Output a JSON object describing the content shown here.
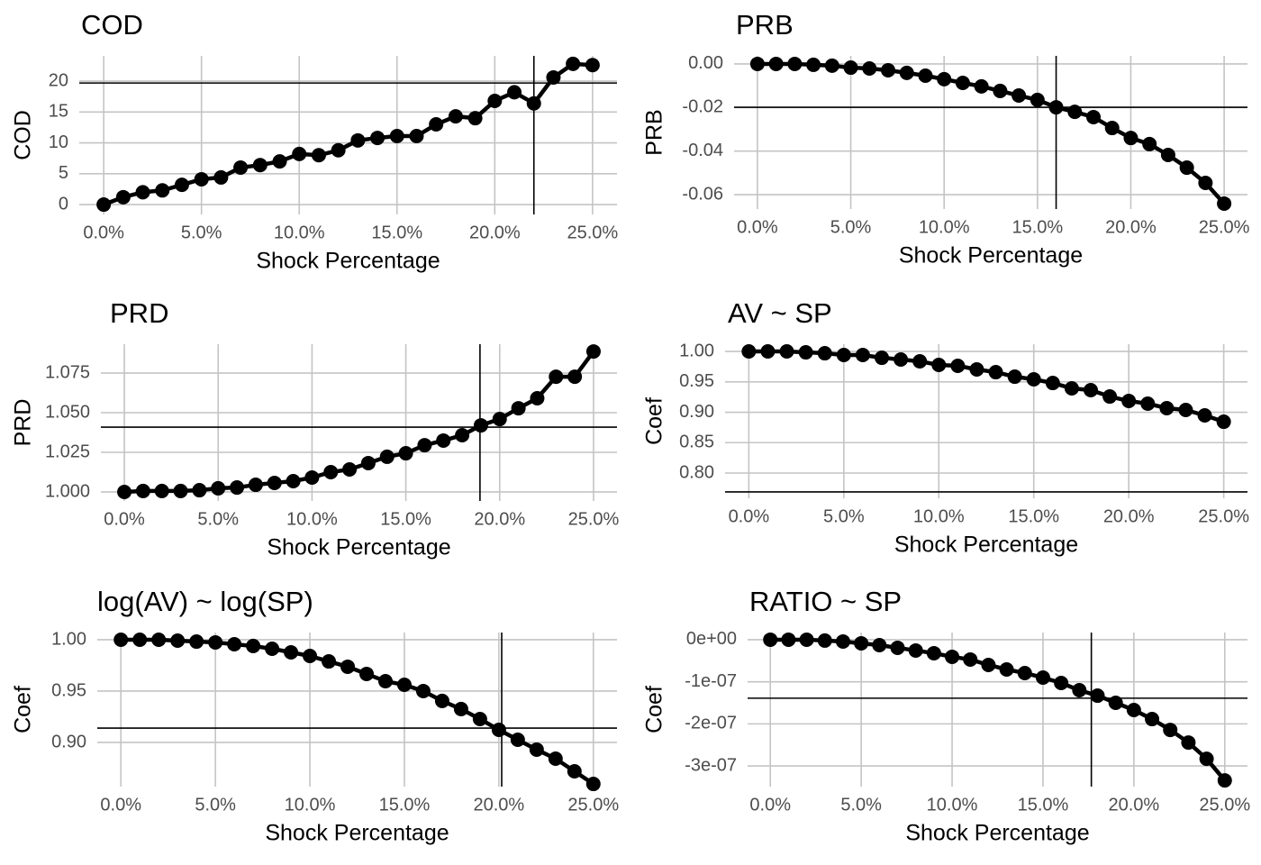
{
  "chart_data": [
    {
      "type": "line",
      "title": "COD",
      "x_label": "Shock Percentage",
      "y_label": "COD",
      "color": "#000000",
      "grid": true,
      "x": [
        0,
        0.01,
        0.02,
        0.03,
        0.04,
        0.05,
        0.06,
        0.07,
        0.08,
        0.09,
        0.1,
        0.11,
        0.12,
        0.13,
        0.14,
        0.15,
        0.16,
        0.17,
        0.18,
        0.19,
        0.2,
        0.21,
        0.22,
        0.23,
        0.24,
        0.25
      ],
      "values": [
        0,
        1.2,
        2,
        2.3,
        3.2,
        4.1,
        4.4,
        6,
        6.4,
        7,
        8.2,
        8,
        8.8,
        10.4,
        10.8,
        11.1,
        11.1,
        13,
        14.3,
        14,
        16.8,
        18.2,
        16.4,
        20.6,
        22.8,
        22.6
      ],
      "xlim": [
        -0.0125,
        0.2625
      ],
      "xticks": [
        {
          "value": 0,
          "label": "0.0%"
        },
        {
          "value": 0.05,
          "label": "5.0%"
        },
        {
          "value": 0.1,
          "label": "10.0%"
        },
        {
          "value": 0.15,
          "label": "15.0%"
        },
        {
          "value": 0.2,
          "label": "20.0%"
        },
        {
          "value": 0.25,
          "label": "25.0%"
        }
      ],
      "ylim": [
        -1.6,
        24.1
      ],
      "yticks": [
        0,
        5,
        10,
        15,
        20
      ],
      "hline": 19.7,
      "vline": 0.22
    },
    {
      "type": "line",
      "title": "PRB",
      "x_label": "Shock Percentage",
      "y_label": "PRB",
      "color": "#000000",
      "grid": true,
      "x": [
        0,
        0.01,
        0.02,
        0.03,
        0.04,
        0.05,
        0.06,
        0.07,
        0.08,
        0.09,
        0.1,
        0.11,
        0.12,
        0.13,
        0.14,
        0.15,
        0.16,
        0.17,
        0.18,
        0.19,
        0.2,
        0.21,
        0.22,
        0.23,
        0.24,
        0.25
      ],
      "values": [
        0,
        0,
        0,
        -0.0004,
        -0.0008,
        -0.0017,
        -0.0021,
        -0.0029,
        -0.0041,
        -0.0054,
        -0.007,
        -0.0087,
        -0.0103,
        -0.0124,
        -0.0145,
        -0.0165,
        -0.0199,
        -0.022,
        -0.0244,
        -0.0294,
        -0.034,
        -0.0368,
        -0.0418,
        -0.0476,
        -0.0546,
        -0.0641
      ],
      "xlim": [
        -0.0125,
        0.2625
      ],
      "xticks": [
        {
          "value": 0,
          "label": "0.0%"
        },
        {
          "value": 0.05,
          "label": "5.0%"
        },
        {
          "value": 0.1,
          "label": "10.0%"
        },
        {
          "value": 0.15,
          "label": "15.0%"
        },
        {
          "value": 0.2,
          "label": "20.0%"
        },
        {
          "value": 0.25,
          "label": "25.0%"
        }
      ],
      "ylim": [
        -0.0666,
        0.0037
      ],
      "yticks": [
        {
          "value": 0,
          "label": "0.00"
        },
        -0.02,
        -0.04,
        -0.06
      ],
      "hline": -0.0199,
      "vline": 0.16
    },
    {
      "type": "line",
      "title": "PRD",
      "x_label": "Shock Percentage",
      "y_label": "PRD",
      "color": "#000000",
      "grid": true,
      "x": [
        0,
        0.01,
        0.02,
        0.03,
        0.04,
        0.05,
        0.06,
        0.07,
        0.08,
        0.09,
        0.1,
        0.11,
        0.12,
        0.13,
        0.14,
        0.15,
        0.16,
        0.17,
        0.18,
        0.19,
        0.2,
        0.21,
        0.22,
        0.23,
        0.24,
        0.25
      ],
      "values": [
        1.0,
        1.0006,
        1.0006,
        1.0006,
        1.0011,
        1.0023,
        1.0028,
        1.0045,
        1.0057,
        1.0068,
        1.0091,
        1.0125,
        1.0142,
        1.0182,
        1.0222,
        1.0244,
        1.0295,
        1.0324,
        1.0358,
        1.042,
        1.046,
        1.0528,
        1.0591,
        1.0727,
        1.0727,
        1.0886
      ],
      "xlim": [
        -0.0125,
        0.2625
      ],
      "xticks": [
        {
          "value": 0,
          "label": "0.0%"
        },
        {
          "value": 0.05,
          "label": "5.0%"
        },
        {
          "value": 0.1,
          "label": "10.0%"
        },
        {
          "value": 0.15,
          "label": "15.0%"
        },
        {
          "value": 0.2,
          "label": "20.0%"
        },
        {
          "value": 0.25,
          "label": "25.0%"
        }
      ],
      "ylim": [
        0.9943,
        1.0932
      ],
      "yticks": [
        {
          "value": 1,
          "label": "1.000"
        },
        1.025,
        {
          "value": 1.05,
          "label": "1.050"
        },
        1.075
      ],
      "hline": 1.0409,
      "vline": 0.1895
    },
    {
      "type": "line",
      "title": "AV ~ SP",
      "x_label": "Shock Percentage",
      "y_label": "Coef",
      "color": "#000000",
      "grid": true,
      "x": [
        0,
        0.01,
        0.02,
        0.03,
        0.04,
        0.05,
        0.06,
        0.07,
        0.08,
        0.09,
        0.1,
        0.11,
        0.12,
        0.13,
        0.14,
        0.15,
        0.16,
        0.17,
        0.18,
        0.19,
        0.2,
        0.21,
        0.22,
        0.23,
        0.24,
        0.25
      ],
      "values": [
        1,
        1,
        1,
        0.9985,
        0.997,
        0.9941,
        0.9941,
        0.9896,
        0.9867,
        0.9837,
        0.9778,
        0.9763,
        0.9704,
        0.9659,
        0.9585,
        0.9541,
        0.9481,
        0.9393,
        0.9363,
        0.9259,
        0.9185,
        0.9141,
        0.9067,
        0.9037,
        0.8948,
        0.8844
      ],
      "xlim": [
        -0.0125,
        0.2625
      ],
      "xticks": [
        {
          "value": 0,
          "label": "0.0%"
        },
        {
          "value": 0.05,
          "label": "5.0%"
        },
        {
          "value": 0.1,
          "label": "10.0%"
        },
        {
          "value": 0.15,
          "label": "15.0%"
        },
        {
          "value": 0.2,
          "label": "20.0%"
        },
        {
          "value": 0.25,
          "label": "25.0%"
        }
      ],
      "ylim": [
        0.7585,
        1.0119
      ],
      "yticks": [
        {
          "value": 1,
          "label": "1.00"
        },
        0.95,
        {
          "value": 0.9,
          "label": "0.90"
        },
        0.85,
        {
          "value": 0.8,
          "label": "0.80"
        }
      ],
      "hline": 0.7689
    },
    {
      "type": "line",
      "title": "log(AV) ~ log(SP)",
      "x_label": "Shock Percentage",
      "y_label": "Coef",
      "color": "#000000",
      "grid": true,
      "x": [
        0,
        0.01,
        0.02,
        0.03,
        0.04,
        0.05,
        0.06,
        0.07,
        0.08,
        0.09,
        0.1,
        0.11,
        0.12,
        0.13,
        0.14,
        0.15,
        0.16,
        0.17,
        0.18,
        0.19,
        0.2,
        0.21,
        0.22,
        0.23,
        0.24,
        0.25
      ],
      "values": [
        1,
        1,
        1,
        0.9991,
        0.9982,
        0.9974,
        0.9956,
        0.9939,
        0.9912,
        0.9877,
        0.9842,
        0.9789,
        0.9737,
        0.9667,
        0.9596,
        0.9561,
        0.95,
        0.9404,
        0.9325,
        0.9228,
        0.9123,
        0.9026,
        0.893,
        0.8842,
        0.8719,
        0.8596
      ],
      "xlim": [
        -0.0125,
        0.2625
      ],
      "xticks": [
        {
          "value": 0,
          "label": "0.0%"
        },
        {
          "value": 0.05,
          "label": "5.0%"
        },
        {
          "value": 0.1,
          "label": "10.0%"
        },
        {
          "value": 0.15,
          "label": "15.0%"
        },
        {
          "value": 0.2,
          "label": "20.0%"
        },
        {
          "value": 0.25,
          "label": "25.0%"
        }
      ],
      "ylim": [
        0.857,
        1.007
      ],
      "yticks": [
        {
          "value": 1,
          "label": "1.00"
        },
        0.95,
        {
          "value": 0.9,
          "label": "0.90"
        }
      ],
      "hline": 0.914,
      "vline": 0.2015
    },
    {
      "type": "line",
      "title": "RATIO ~ SP",
      "x_label": "Shock Percentage",
      "y_label": "Coef",
      "color": "#000000",
      "grid": true,
      "x": [
        0,
        0.01,
        0.02,
        0.03,
        0.04,
        0.05,
        0.06,
        0.07,
        0.08,
        0.09,
        0.1,
        0.11,
        0.12,
        0.13,
        0.14,
        0.15,
        0.16,
        0.17,
        0.18,
        0.19,
        0.2,
        0.21,
        0.22,
        0.23,
        0.24,
        0.25
      ],
      "values": [
        0,
        0,
        0,
        -2.1e-09,
        -4.3e-09,
        -8.6e-09,
        -1.29e-08,
        -1.93e-08,
        -2.57e-08,
        -3.21e-08,
        -4.07e-08,
        -4.71e-08,
        -6e-08,
        -7.07e-08,
        -7.93e-08,
        -9e-08,
        -1.029e-07,
        -1.2e-07,
        -1.329e-07,
        -1.5e-07,
        -1.671e-07,
        -1.886e-07,
        -2.143e-07,
        -2.443e-07,
        -2.829e-07,
        -3.343e-07
      ],
      "xlim": [
        -0.0125,
        0.2625
      ],
      "xticks": [
        {
          "value": 0,
          "label": "0.0%"
        },
        {
          "value": 0.05,
          "label": "5.0%"
        },
        {
          "value": 0.1,
          "label": "10.0%"
        },
        {
          "value": 0.15,
          "label": "15.0%"
        },
        {
          "value": 0.2,
          "label": "20.0%"
        },
        {
          "value": 0.25,
          "label": "25.0%"
        }
      ],
      "ylim": [
        -3.49e-07,
        1.7e-08
      ],
      "yticks": [
        {
          "value": 0,
          "label": "0e+00"
        },
        {
          "value": -1e-07,
          "label": "-1e-07"
        },
        {
          "value": -2e-07,
          "label": "-2e-07"
        },
        {
          "value": -3e-07,
          "label": "-3e-07"
        }
      ],
      "hline": -1.39e-07,
      "vline": 0.1766
    }
  ]
}
